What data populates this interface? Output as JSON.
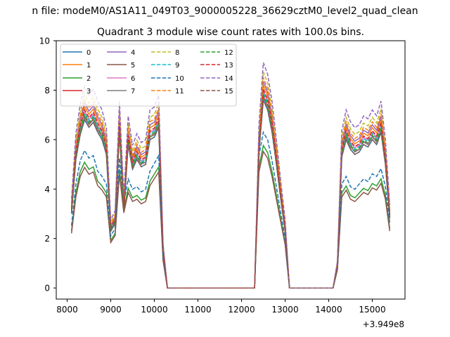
{
  "figure": {
    "suptitle": "n file: modeM0/AS1A11_049T03_9000005228_36629cztM0_level2_quad_clean"
  },
  "chart_data": {
    "type": "line",
    "title": "Quadrant 3 module wise count rates with 100.0s bins.",
    "xlabel": "",
    "ylabel": "",
    "x_offset_label": "+3.949e8",
    "xlim": [
      7750,
      15750
    ],
    "ylim": [
      -0.45,
      10.0
    ],
    "xticks": [
      8000,
      9000,
      10000,
      11000,
      12000,
      13000,
      14000,
      15000
    ],
    "xtick_labels": [
      "8000",
      "9000",
      "10000",
      "11000",
      "12000",
      "13000",
      "14000",
      "15000"
    ],
    "yticks": [
      0,
      2,
      4,
      6,
      8,
      10
    ],
    "ytick_labels": [
      "0",
      "2",
      "4",
      "6",
      "8",
      "10"
    ],
    "grid": false,
    "legend_placement": "upper-left",
    "legend_columns": 4,
    "x": [
      8100,
      8200,
      8300,
      8400,
      8500,
      8600,
      8700,
      8800,
      8900,
      9000,
      9100,
      9200,
      9300,
      9400,
      9500,
      9600,
      9700,
      9800,
      9900,
      10000,
      10100,
      10200,
      10300,
      10400,
      10500,
      10600,
      10700,
      10800,
      10900,
      11000,
      11100,
      11200,
      11300,
      11400,
      11500,
      11600,
      11700,
      11800,
      11900,
      12000,
      12100,
      12200,
      12300,
      12400,
      12500,
      12600,
      12700,
      12800,
      12900,
      13000,
      13100,
      13200,
      13300,
      13400,
      13500,
      13600,
      13700,
      13800,
      13900,
      14000,
      14100,
      14200,
      14300,
      14400,
      14500,
      14600,
      14700,
      14800,
      14900,
      15000,
      15100,
      15200,
      15300,
      15400
    ],
    "profiles": {
      "A": [
        3.0,
        5.2,
        6.2,
        6.8,
        6.5,
        6.7,
        6.3,
        6.0,
        5.4,
        2.3,
        2.6,
        6.3,
        3.1,
        5.8,
        4.8,
        5.2,
        4.9,
        5.0,
        6.0,
        6.1,
        6.5,
        1.5,
        0.0,
        0.0,
        0.0,
        0.0,
        0.0,
        0.0,
        0.0,
        0.0,
        0.0,
        0.0,
        0.0,
        0.0,
        0.0,
        0.0,
        0.0,
        0.0,
        0.0,
        0.0,
        0.0,
        0.0,
        0.0,
        5.5,
        7.6,
        7.2,
        6.3,
        5.0,
        3.6,
        2.3,
        0.0,
        0.0,
        0.0,
        0.0,
        0.0,
        0.0,
        0.0,
        0.0,
        0.0,
        0.0,
        0.0,
        0.9,
        5.3,
        6.0,
        5.6,
        5.4,
        5.5,
        5.8,
        5.7,
        6.0,
        5.8,
        6.3,
        5.0,
        2.8
      ],
      "B": [
        2.4,
        4.0,
        4.9,
        5.3,
        5.0,
        5.1,
        4.5,
        4.3,
        4.0,
        2.0,
        2.3,
        5.0,
        3.3,
        4.2,
        3.8,
        3.9,
        3.7,
        3.8,
        4.5,
        4.8,
        5.1,
        1.2,
        0.0,
        0.0,
        0.0,
        0.0,
        0.0,
        0.0,
        0.0,
        0.0,
        0.0,
        0.0,
        0.0,
        0.0,
        0.0,
        0.0,
        0.0,
        0.0,
        0.0,
        0.0,
        0.0,
        0.0,
        0.0,
        5.1,
        6.0,
        5.7,
        4.9,
        3.9,
        2.9,
        1.9,
        0.0,
        0.0,
        0.0,
        0.0,
        0.0,
        0.0,
        0.0,
        0.0,
        0.0,
        0.0,
        0.0,
        0.8,
        4.0,
        4.3,
        3.9,
        3.8,
        4.0,
        4.2,
        4.1,
        4.4,
        4.3,
        4.6,
        3.9,
        2.5
      ]
    },
    "series": [
      {
        "name": "0",
        "color": "#1f77b4",
        "dash": false,
        "profile": "A",
        "scale": 1.0,
        "offset": 0.0
      },
      {
        "name": "1",
        "color": "#ff7f0e",
        "dash": false,
        "profile": "A",
        "scale": 1.08,
        "offset": 0.0
      },
      {
        "name": "2",
        "color": "#2ca02c",
        "dash": false,
        "profile": "B",
        "scale": 0.96,
        "offset": 0.0
      },
      {
        "name": "3",
        "color": "#d62728",
        "dash": false,
        "profile": "A",
        "scale": 1.02,
        "offset": 0.0
      },
      {
        "name": "4",
        "color": "#9467bd",
        "dash": false,
        "profile": "A",
        "scale": 1.1,
        "offset": 0.0
      },
      {
        "name": "5",
        "color": "#8c564b",
        "dash": false,
        "profile": "B",
        "scale": 0.92,
        "offset": 0.0
      },
      {
        "name": "6",
        "color": "#e377c2",
        "dash": false,
        "profile": "A",
        "scale": 1.05,
        "offset": 0.0
      },
      {
        "name": "7",
        "color": "#7f7f7f",
        "dash": false,
        "profile": "A",
        "scale": 1.0,
        "offset": 0.1
      },
      {
        "name": "8",
        "color": "#bcbd22",
        "dash": true,
        "profile": "A",
        "scale": 1.15,
        "offset": 0.0
      },
      {
        "name": "9",
        "color": "#17becf",
        "dash": true,
        "profile": "A",
        "scale": 1.04,
        "offset": 0.0
      },
      {
        "name": "10",
        "color": "#1f77b4",
        "dash": true,
        "profile": "B",
        "scale": 1.05,
        "offset": 0.0
      },
      {
        "name": "11",
        "color": "#ff7f0e",
        "dash": true,
        "profile": "A",
        "scale": 1.12,
        "offset": 0.0
      },
      {
        "name": "12",
        "color": "#2ca02c",
        "dash": true,
        "profile": "A",
        "scale": 1.03,
        "offset": 0.0
      },
      {
        "name": "13",
        "color": "#d62728",
        "dash": true,
        "profile": "A",
        "scale": 1.06,
        "offset": 0.0
      },
      {
        "name": "14",
        "color": "#9467bd",
        "dash": true,
        "profile": "A",
        "scale": 1.2,
        "offset": 0.0
      },
      {
        "name": "15",
        "color": "#8c564b",
        "dash": true,
        "profile": "A",
        "scale": 1.0,
        "offset": 0.0
      }
    ]
  }
}
